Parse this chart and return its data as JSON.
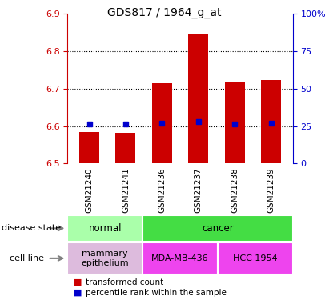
{
  "title": "GDS817 / 1964_g_at",
  "samples": [
    "GSM21240",
    "GSM21241",
    "GSM21236",
    "GSM21237",
    "GSM21238",
    "GSM21239"
  ],
  "bar_bottoms": [
    6.5,
    6.5,
    6.5,
    6.5,
    6.5,
    6.5
  ],
  "bar_tops": [
    6.585,
    6.582,
    6.715,
    6.845,
    6.717,
    6.722
  ],
  "percentile_values": [
    6.605,
    6.605,
    6.607,
    6.612,
    6.606,
    6.607
  ],
  "ylim": [
    6.5,
    6.9
  ],
  "yticks_left": [
    6.5,
    6.6,
    6.7,
    6.8,
    6.9
  ],
  "yticks_right": [
    0,
    25,
    50,
    75,
    100
  ],
  "ytick_right_labels": [
    "0",
    "25",
    "50",
    "75",
    "100%"
  ],
  "bar_color": "#cc0000",
  "marker_color": "#0000cc",
  "axis_color_left": "#cc0000",
  "axis_color_right": "#0000cc",
  "disease_state_groups": [
    {
      "label": "normal",
      "cols": [
        0,
        1
      ],
      "color": "#aaffaa"
    },
    {
      "label": "cancer",
      "cols": [
        2,
        3,
        4,
        5
      ],
      "color": "#44dd44"
    }
  ],
  "cell_line_groups": [
    {
      "label": "mammary\nepithelium",
      "cols": [
        0,
        1
      ],
      "color": "#ddbbdd"
    },
    {
      "label": "MDA-MB-436",
      "cols": [
        2,
        3
      ],
      "color": "#dd55dd"
    },
    {
      "label": "HCC 1954",
      "cols": [
        4,
        5
      ],
      "color": "#dd55dd"
    }
  ],
  "bg_color": "#cccccc",
  "plot_bg": "#ffffff",
  "legend_items": [
    "transformed count",
    "percentile rank within the sample"
  ]
}
